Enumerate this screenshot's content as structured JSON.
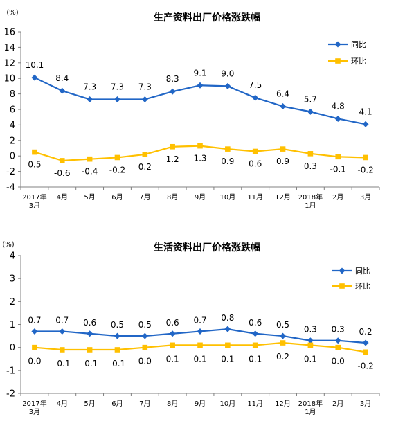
{
  "colors": {
    "series1": "#2166c6",
    "series2": "#ffc000",
    "axis": "#808080"
  },
  "chart_data": [
    {
      "type": "line",
      "title": "生产资料出厂价格涨跌幅",
      "unit": "(%)",
      "categories": [
        [
          "2017年",
          "3月"
        ],
        [
          "4月"
        ],
        [
          "5月"
        ],
        [
          "6月"
        ],
        [
          "7月"
        ],
        [
          "8月"
        ],
        [
          "9月"
        ],
        [
          "10月"
        ],
        [
          "11月"
        ],
        [
          "12月"
        ],
        [
          "2018年",
          "1月"
        ],
        [
          "2月"
        ],
        [
          "3月"
        ]
      ],
      "ylim": [
        -4,
        16
      ],
      "yticks": [
        -4,
        -2,
        0,
        2,
        4,
        6,
        8,
        10,
        12,
        14,
        16
      ],
      "grid": false,
      "legend_position": "top-right",
      "series": [
        {
          "name": "同比",
          "marker": "diamond",
          "values": [
            10.1,
            8.4,
            7.3,
            7.3,
            7.3,
            8.3,
            9.1,
            9.0,
            7.5,
            6.4,
            5.7,
            4.8,
            4.1
          ],
          "labels": [
            "10.1",
            "8.4",
            "7.3",
            "7.3",
            "7.3",
            "8.3",
            "9.1",
            "9.0",
            "7.5",
            "6.4",
            "5.7",
            "4.8",
            "4.1"
          ]
        },
        {
          "name": "环比",
          "marker": "square",
          "values": [
            0.5,
            -0.6,
            -0.4,
            -0.2,
            0.2,
            1.2,
            1.3,
            0.9,
            0.6,
            0.9,
            0.3,
            -0.1,
            -0.2
          ],
          "labels": [
            "0.5",
            "-0.6",
            "-0.4",
            "-0.2",
            "0.2",
            "1.2",
            "1.3",
            "0.9",
            "0.6",
            "0.9",
            "0.3",
            "-0.1",
            "-0.2"
          ]
        }
      ]
    },
    {
      "type": "line",
      "title": "生活资料出厂价格涨跌幅",
      "unit": "(%)",
      "categories": [
        [
          "2017年",
          "3月"
        ],
        [
          "4月"
        ],
        [
          "5月"
        ],
        [
          "6月"
        ],
        [
          "7月"
        ],
        [
          "8月"
        ],
        [
          "9月"
        ],
        [
          "10月"
        ],
        [
          "11月"
        ],
        [
          "12月"
        ],
        [
          "2018年",
          "1月"
        ],
        [
          "2月"
        ],
        [
          "3月"
        ]
      ],
      "ylim": [
        -2,
        4
      ],
      "yticks": [
        -2,
        -1,
        0,
        1,
        2,
        3,
        4
      ],
      "grid": false,
      "legend_position": "top-right",
      "series": [
        {
          "name": "同比",
          "marker": "diamond",
          "values": [
            0.7,
            0.7,
            0.6,
            0.5,
            0.5,
            0.6,
            0.7,
            0.8,
            0.6,
            0.5,
            0.3,
            0.3,
            0.2
          ],
          "labels": [
            "0.7",
            "0.7",
            "0.6",
            "0.5",
            "0.5",
            "0.6",
            "0.7",
            "0.8",
            "0.6",
            "0.5",
            "0.3",
            "0.3",
            "0.2"
          ]
        },
        {
          "name": "环比",
          "marker": "square",
          "values": [
            0.0,
            -0.1,
            -0.1,
            -0.1,
            0.0,
            0.1,
            0.1,
            0.1,
            0.1,
            0.2,
            0.1,
            0.0,
            -0.2
          ],
          "labels": [
            "0.0",
            "-0.1",
            "-0.1",
            "-0.1",
            "0.0",
            "0.1",
            "0.1",
            "0.1",
            "0.1",
            "0.2",
            "0.1",
            "0.0",
            "-0.2"
          ]
        }
      ]
    }
  ]
}
